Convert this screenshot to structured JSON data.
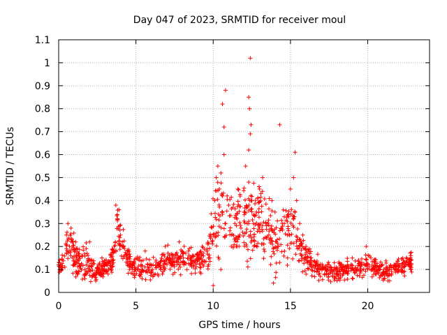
{
  "chart_data": {
    "type": "scatter",
    "title": "Day 047 of 2023, SRMTID for receiver moul",
    "xlabel": "GPS time / hours",
    "ylabel": "SRMTID / TECUs",
    "xlim": [
      0,
      24
    ],
    "ylim": [
      0,
      1.1
    ],
    "xticks": [
      0,
      5,
      10,
      15,
      20
    ],
    "xtick_labels": [
      "0",
      "5",
      "10",
      "15",
      "20"
    ],
    "yticks": [
      0,
      0.1,
      0.2,
      0.3,
      0.4,
      0.5,
      0.6,
      0.7,
      0.8,
      0.9,
      1,
      1.1
    ],
    "ytick_labels": [
      "0",
      "0.1",
      "0.2",
      "0.3",
      "0.4",
      "0.5",
      "0.6",
      "0.7",
      "0.8",
      "0.9",
      "1",
      "1.1"
    ],
    "grid": true,
    "marker": "+",
    "series_color": "#ff0000",
    "data_span_hours": [
      0.0,
      22.85
    ],
    "series": [
      {
        "name": "SRMTID",
        "x": [
          0.0,
          0.2,
          0.4,
          0.5,
          0.6,
          0.7,
          0.8,
          0.9,
          1.0,
          1.1,
          1.3,
          1.5,
          1.7,
          1.8,
          2.0,
          2.2,
          2.4,
          2.6,
          2.8,
          3.0,
          3.2,
          3.4,
          3.6,
          3.7,
          3.8,
          3.9,
          4.0,
          4.2,
          4.4,
          4.6,
          4.8,
          5.0,
          5.2,
          5.4,
          5.6,
          5.8,
          6.0,
          6.3,
          6.6,
          6.9,
          7.2,
          7.5,
          7.8,
          8.1,
          8.4,
          8.7,
          9.0,
          9.3,
          9.6,
          9.8,
          10.0,
          10.1,
          10.2,
          10.3,
          10.4,
          10.5,
          10.6,
          10.7,
          10.8,
          10.9,
          11.0,
          11.2,
          11.4,
          11.6,
          11.8,
          12.0,
          12.1,
          12.2,
          12.3,
          12.4,
          12.5,
          12.6,
          12.8,
          13.0,
          13.2,
          13.4,
          13.6,
          13.8,
          14.0,
          14.2,
          14.4,
          14.6,
          14.8,
          15.0,
          15.2,
          15.4,
          15.6,
          15.8,
          16.0,
          16.3,
          16.6,
          16.9,
          17.2,
          17.5,
          17.8,
          18.1,
          18.4,
          18.7,
          19.0,
          19.3,
          19.6,
          19.9,
          20.2,
          20.5,
          20.8,
          21.1,
          21.4,
          21.7,
          22.0,
          22.3,
          22.6,
          22.8,
          10.6,
          10.8,
          10.7,
          12.3,
          12.4,
          12.35,
          12.45,
          12.4,
          12.3,
          14.3,
          15.3,
          10.0,
          10.5
        ],
        "y": [
          0.12,
          0.1,
          0.11,
          0.25,
          0.3,
          0.2,
          0.28,
          0.15,
          0.12,
          0.22,
          0.14,
          0.16,
          0.1,
          0.08,
          0.22,
          0.12,
          0.05,
          0.1,
          0.15,
          0.12,
          0.08,
          0.1,
          0.2,
          0.38,
          0.32,
          0.36,
          0.25,
          0.2,
          0.15,
          0.12,
          0.08,
          0.1,
          0.14,
          0.06,
          0.18,
          0.1,
          0.12,
          0.14,
          0.1,
          0.2,
          0.15,
          0.13,
          0.22,
          0.12,
          0.18,
          0.16,
          0.14,
          0.2,
          0.18,
          0.15,
          0.25,
          0.4,
          0.5,
          0.55,
          0.45,
          0.52,
          0.35,
          0.6,
          0.3,
          0.42,
          0.38,
          0.25,
          0.3,
          0.45,
          0.28,
          0.35,
          0.55,
          0.3,
          0.48,
          0.25,
          0.4,
          0.3,
          0.35,
          0.45,
          0.5,
          0.3,
          0.25,
          0.4,
          0.35,
          0.2,
          0.28,
          0.3,
          0.25,
          0.45,
          0.5,
          0.4,
          0.3,
          0.25,
          0.2,
          0.15,
          0.12,
          0.1,
          0.08,
          0.12,
          0.1,
          0.06,
          0.08,
          0.12,
          0.15,
          0.1,
          0.12,
          0.2,
          0.15,
          0.08,
          0.1,
          0.06,
          0.08,
          0.12,
          0.1,
          0.14,
          0.12,
          0.1,
          0.82,
          0.88,
          0.72,
          0.85,
          1.02,
          0.8,
          0.73,
          0.69,
          0.62,
          0.73,
          0.61,
          0.03,
          0.1
        ]
      }
    ]
  }
}
